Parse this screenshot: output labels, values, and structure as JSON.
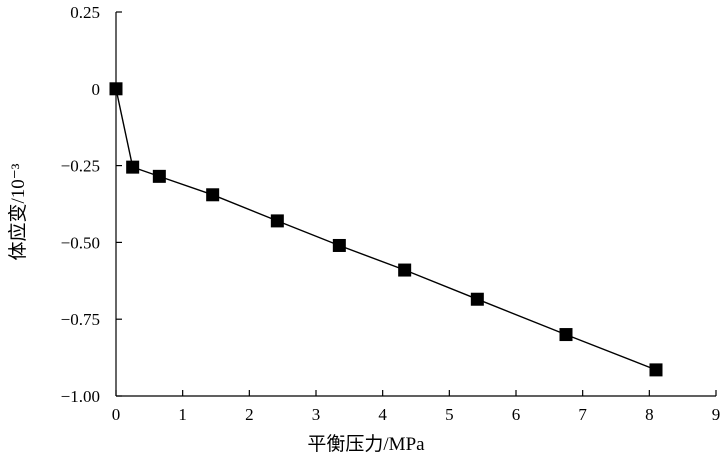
{
  "chart_data": {
    "type": "line",
    "title": "",
    "xlabel": "平衡压力/MPa",
    "ylabel": "体应变/10⁻³",
    "xlim": [
      0,
      9
    ],
    "ylim": [
      -1.0,
      0.25
    ],
    "x_ticks": [
      "0",
      "1",
      "2",
      "3",
      "4",
      "5",
      "6",
      "7",
      "8",
      "9"
    ],
    "y_ticks": [
      "0.25",
      "0",
      "−0.25",
      "−0.50",
      "−0.75",
      "−1.00"
    ],
    "grid": false,
    "legend": "none",
    "series": [
      {
        "marker": "square",
        "color": "#000000",
        "x": [
          0.0,
          0.25,
          0.65,
          1.45,
          2.42,
          3.35,
          4.33,
          5.42,
          6.75,
          8.1
        ],
        "y": [
          0.0,
          -0.255,
          -0.285,
          -0.345,
          -0.43,
          -0.51,
          -0.59,
          -0.685,
          -0.8,
          -0.915
        ]
      }
    ]
  }
}
